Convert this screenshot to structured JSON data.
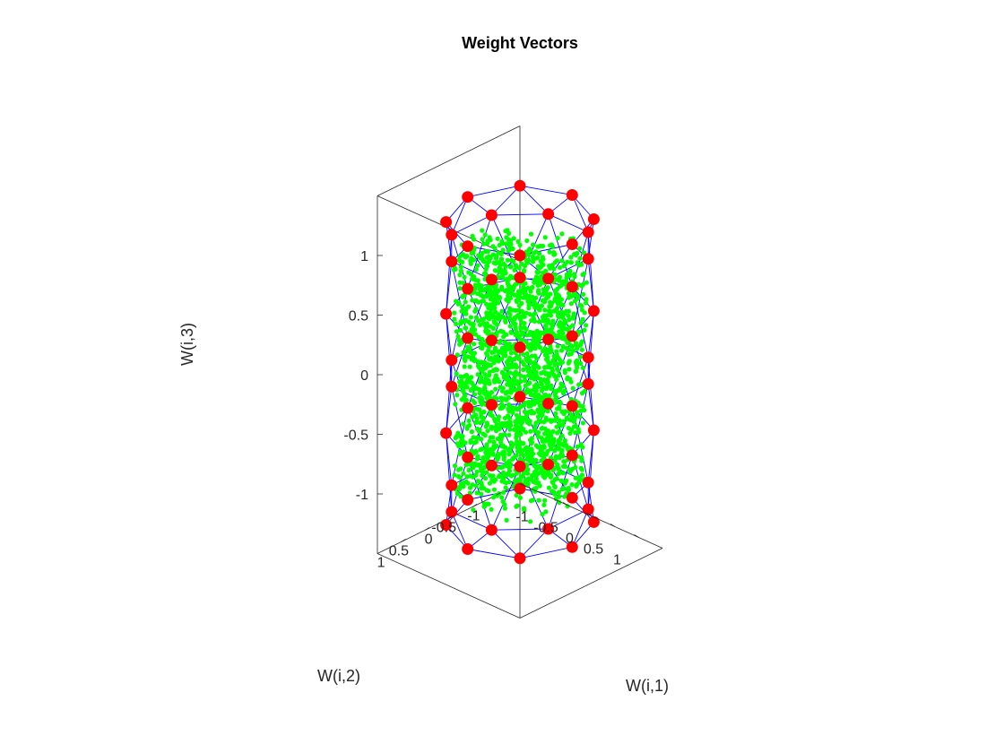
{
  "chart_data": {
    "type": "scatter",
    "title": "Weight Vectors",
    "xlabel": "W(i,1)",
    "ylabel": "W(i,2)",
    "zlabel": "W(i,3)",
    "xlim": [
      -1.5,
      1.5
    ],
    "ylim": [
      -1.5,
      1.5
    ],
    "zlim": [
      -1.5,
      1.5
    ],
    "xticks": [
      -1,
      -0.5,
      0,
      0.5,
      1
    ],
    "yticks": [
      -1,
      -0.5,
      0,
      0.5,
      1
    ],
    "zticks": [
      -1,
      -0.5,
      0,
      0.5,
      1
    ],
    "xtick_labels": [
      "-1",
      "-0.5",
      "0",
      "0.5",
      "1"
    ],
    "ytick_labels": [
      "-1",
      "-0.5",
      "0",
      "0.5",
      "1"
    ],
    "ztick_labels": [
      "-1",
      "-0.5",
      "0",
      "0.5",
      "1"
    ],
    "grid": false,
    "box": true,
    "view": "3d",
    "colors": {
      "inputs": "#00ff00",
      "neurons": "#ff0000",
      "links": "#0000ff",
      "axes": "#262626"
    },
    "series": [
      {
        "kind": "input-points",
        "distribution": "uniform inside cylinder",
        "count": 2000,
        "radius": 1,
        "z_range": [
          -1,
          1
        ]
      },
      {
        "kind": "neuron-grid",
        "layers_z": [
          -1.27,
          -1.05,
          -0.5,
          0,
          0.5,
          1.05,
          1.27
        ],
        "per_layer": 8,
        "radius": 1.1
      }
    ]
  }
}
